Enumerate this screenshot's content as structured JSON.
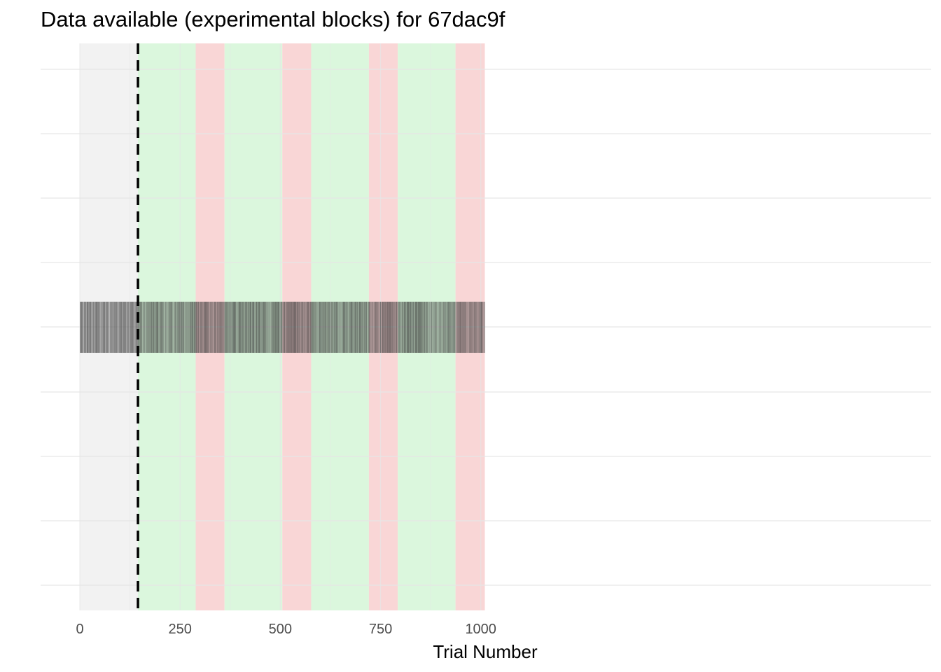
{
  "chart_data": {
    "type": "bar",
    "title": "Data available (experimental blocks) for 67dac9f",
    "xlabel": "Trial Number",
    "ylabel": "",
    "xlim": [
      0,
      1010
    ],
    "x_ticks": [
      0,
      250,
      500,
      750,
      1000
    ],
    "x_tick_labels": [
      "0",
      "250",
      "500",
      "750",
      "1000"
    ],
    "grid": true,
    "legend": "none",
    "cutoff_line": {
      "x": 145,
      "style": "dashed",
      "color": "#000000"
    },
    "blocks": [
      {
        "start": 0,
        "end": 145,
        "type": "practice"
      },
      {
        "start": 145,
        "end": 289,
        "type": "green"
      },
      {
        "start": 289,
        "end": 361,
        "type": "red"
      },
      {
        "start": 361,
        "end": 505,
        "type": "green"
      },
      {
        "start": 505,
        "end": 577,
        "type": "red"
      },
      {
        "start": 577,
        "end": 721,
        "type": "green"
      },
      {
        "start": 721,
        "end": 793,
        "type": "red"
      },
      {
        "start": 793,
        "end": 937,
        "type": "green"
      },
      {
        "start": 937,
        "end": 1010,
        "type": "red"
      }
    ],
    "trials": {
      "first": 1,
      "last": 1010,
      "note": "one semi-transparent dark tick per available trial"
    }
  },
  "colors": {
    "practice": "#f2f2f2",
    "green": "#dbf7dd",
    "red": "#f9d6d6",
    "grid": "#e6e6e6",
    "trial_tick": "#333333"
  }
}
